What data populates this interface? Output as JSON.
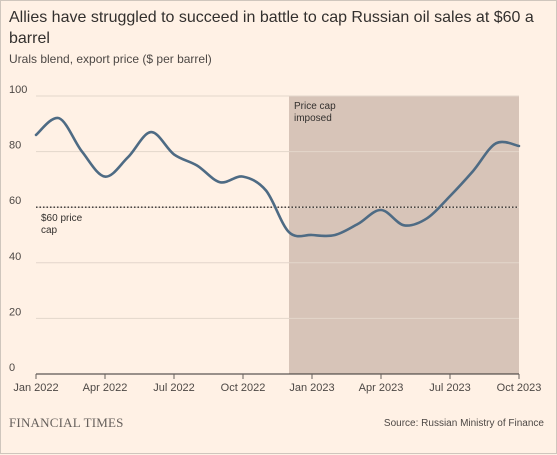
{
  "header": {
    "title": "Allies have struggled to succeed in battle to cap Russian oil sales at $60 a barrel",
    "subtitle": "Urals blend, export price ($ per barrel)"
  },
  "footer": {
    "brand": "FINANCIAL TIMES",
    "source": "Source: Russian Ministry of Finance"
  },
  "colors": {
    "background": "#fff1e5",
    "line": "#4e6b84",
    "shade": "#d7c4b8",
    "grid": "#e3d6cb",
    "cap_line": "#33302e"
  },
  "chart_data": {
    "type": "line",
    "title": "Allies have struggled to succeed in battle to cap Russian oil sales at $60 a barrel",
    "subtitle": "Urals blend, export price ($ per barrel)",
    "xlabel": "",
    "ylabel": "",
    "ylim": [
      0,
      100
    ],
    "yticks": [
      0,
      20,
      40,
      60,
      80,
      100
    ],
    "xlim": [
      "2022-01",
      "2023-10"
    ],
    "xticks": [
      {
        "label": "Jan 2022",
        "x": "2022-01"
      },
      {
        "label": "Apr 2022",
        "x": "2022-04"
      },
      {
        "label": "Jul 2022",
        "x": "2022-07"
      },
      {
        "label": "Oct 2022",
        "x": "2022-10"
      },
      {
        "label": "Jan 2023",
        "x": "2023-01"
      },
      {
        "label": "Apr 2023",
        "x": "2023-04"
      },
      {
        "label": "Jul 2023",
        "x": "2023-07"
      },
      {
        "label": "Oct 2023",
        "x": "2023-10"
      }
    ],
    "grid": "horizontal",
    "series": [
      {
        "values": [
          {
            "x": "2022-01",
            "y": 86
          },
          {
            "x": "2022-02",
            "y": 92
          },
          {
            "x": "2022-03",
            "y": 80
          },
          {
            "x": "2022-04",
            "y": 71
          },
          {
            "x": "2022-05",
            "y": 78
          },
          {
            "x": "2022-06",
            "y": 87
          },
          {
            "x": "2022-07",
            "y": 79
          },
          {
            "x": "2022-08",
            "y": 75
          },
          {
            "x": "2022-09",
            "y": 69
          },
          {
            "x": "2022-10",
            "y": 71
          },
          {
            "x": "2022-11",
            "y": 66
          },
          {
            "x": "2022-12",
            "y": 51
          },
          {
            "x": "2023-01",
            "y": 50
          },
          {
            "x": "2023-02",
            "y": 50
          },
          {
            "x": "2023-03",
            "y": 54
          },
          {
            "x": "2023-04",
            "y": 59
          },
          {
            "x": "2023-05",
            "y": 53.5
          },
          {
            "x": "2023-06",
            "y": 56
          },
          {
            "x": "2023-07",
            "y": 64
          },
          {
            "x": "2023-08",
            "y": 73
          },
          {
            "x": "2023-09",
            "y": 83
          },
          {
            "x": "2023-10",
            "y": 82
          }
        ]
      }
    ],
    "annotations": [
      {
        "type": "hline",
        "y": 60,
        "label": "$60 price cap",
        "label_lines": [
          "$60 price",
          "cap"
        ]
      },
      {
        "type": "span",
        "x_start": "2022-12",
        "x_end": "2023-10",
        "label": "Price cap imposed",
        "label_lines": [
          "Price cap",
          "imposed"
        ]
      }
    ]
  }
}
